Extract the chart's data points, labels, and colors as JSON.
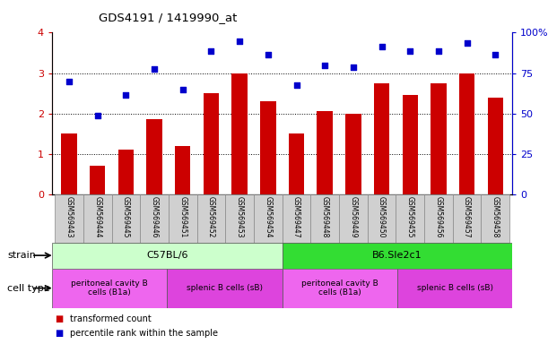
{
  "title": "GDS4191 / 1419990_at",
  "samples": [
    "GSM569443",
    "GSM569444",
    "GSM569445",
    "GSM569446",
    "GSM569451",
    "GSM569452",
    "GSM569453",
    "GSM569454",
    "GSM569447",
    "GSM569448",
    "GSM569449",
    "GSM569450",
    "GSM569455",
    "GSM569456",
    "GSM569457",
    "GSM569458"
  ],
  "transformed_count": [
    1.5,
    0.7,
    1.1,
    1.85,
    1.2,
    2.5,
    3.0,
    2.3,
    1.5,
    2.05,
    2.0,
    2.75,
    2.45,
    2.75,
    3.0,
    2.4
  ],
  "percentile_rank": [
    2.8,
    1.95,
    2.45,
    3.1,
    2.6,
    3.55,
    3.8,
    3.45,
    2.7,
    3.2,
    3.15,
    3.65,
    3.55,
    3.55,
    3.75,
    3.45
  ],
  "bar_color": "#cc0000",
  "scatter_color": "#0000cc",
  "ylim": [
    0,
    4
  ],
  "yticks_left": [
    0,
    1,
    2,
    3,
    4
  ],
  "yticks_right_labels": [
    "0",
    "25",
    "50",
    "75",
    "100%"
  ],
  "dotted_lines": [
    1,
    2,
    3
  ],
  "strain_groups": [
    {
      "label": "C57BL/6",
      "start": 0,
      "end": 8,
      "color": "#ccffcc"
    },
    {
      "label": "B6.Sle2c1",
      "start": 8,
      "end": 16,
      "color": "#33dd33"
    }
  ],
  "cell_type_groups": [
    {
      "label": "peritoneal cavity B\ncells (B1a)",
      "start": 0,
      "end": 4,
      "color": "#ee66ee"
    },
    {
      "label": "splenic B cells (sB)",
      "start": 4,
      "end": 8,
      "color": "#dd44dd"
    },
    {
      "label": "peritoneal cavity B\ncells (B1a)",
      "start": 8,
      "end": 12,
      "color": "#ee66ee"
    },
    {
      "label": "splenic B cells (sB)",
      "start": 12,
      "end": 16,
      "color": "#dd44dd"
    }
  ],
  "legend_red": "transformed count",
  "legend_blue": "percentile rank within the sample",
  "strain_label": "strain",
  "cell_type_label": "cell type",
  "bg_color": "#ffffff",
  "tick_area_color": "#d0d0d0"
}
